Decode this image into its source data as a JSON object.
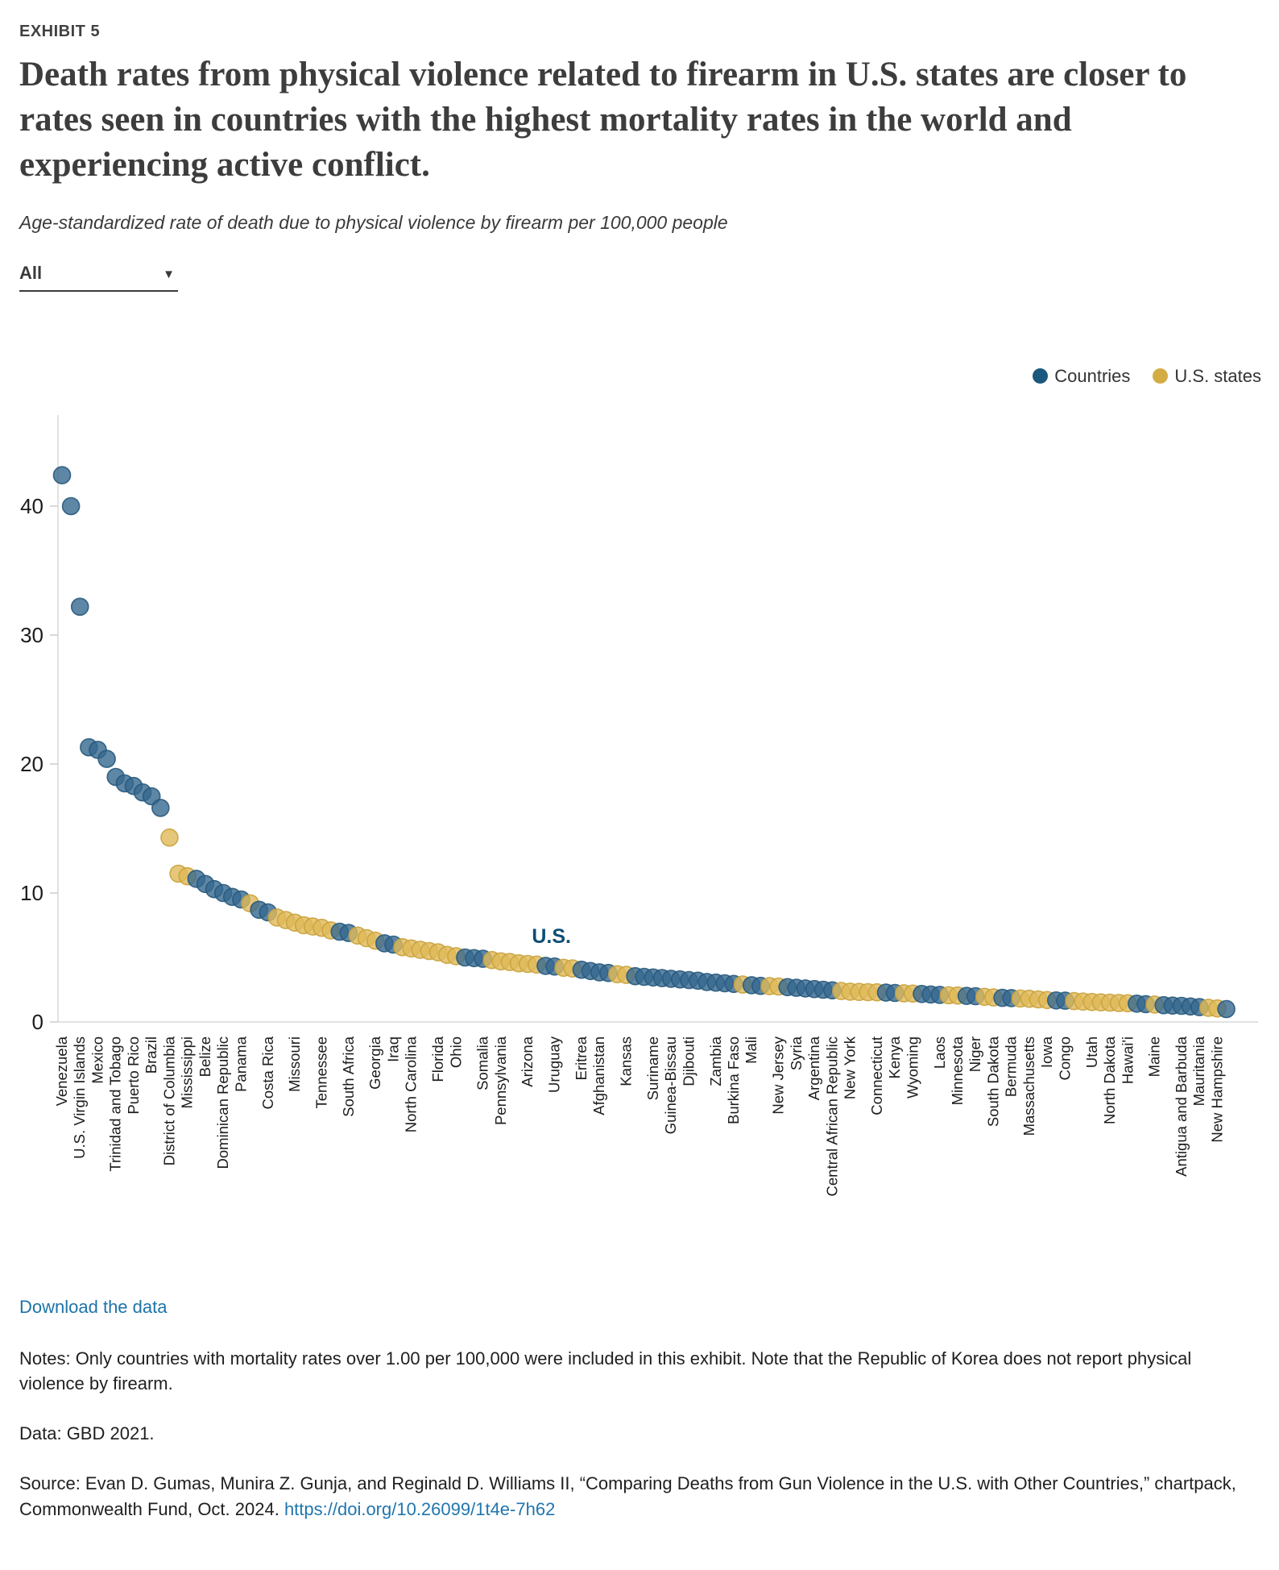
{
  "exhibit": "EXHIBIT 5",
  "title": "Death rates from physical violence related to firearm in U.S. states are closer to rates seen in countries with the highest mortality rates in the world and experiencing active conflict.",
  "subtitle": "Age-standardized rate of death due to physical violence by firearm per 100,000 people",
  "filter": {
    "value": "All",
    "caret": "▼"
  },
  "legend": [
    {
      "label": "Countries",
      "color": "#1b587d"
    },
    {
      "label": "U.S. states",
      "color": "#d3ac44"
    }
  ],
  "footer": {
    "download": "Download the data",
    "notes": "Notes: Only countries with mortality rates over 1.00 per 100,000 were included in this exhibit. Note that the Republic of Korea does not report physical violence by firearm.",
    "data": "Data: GBD 2021.",
    "source_prefix": "Source: Evan D. Gumas, Munira Z. Gunja, and Reginald D. Williams II, “Comparing Deaths from Gun Violence in the U.S. with Other Countries,” chartpack, Commonwealth Fund, Oct. 2024. ",
    "source_link": "https://doi.org/10.26099/1t4e-7h62"
  },
  "chart_data": {
    "type": "scatter",
    "title": "Age-standardized rate of death due to physical violence by firearm per 100,000 people",
    "xlabel": "",
    "ylabel": "",
    "ylim": [
      0,
      46
    ],
    "yticks": [
      0,
      10,
      20,
      30,
      40
    ],
    "grid": false,
    "legend_position": "top-right",
    "annotation": {
      "text": "U.S.",
      "color": "#0f4d74",
      "near_value": 4.9
    },
    "series_colors": {
      "country": {
        "fill": "#36688e",
        "stroke": "#26597c"
      },
      "state": {
        "fill": "#e0b958",
        "stroke": "#c9a23c"
      }
    },
    "point_format": "l = x-axis label ('' = unlabeled tick), v = rate per 100,000, t = c(country)|s(U.S. state)",
    "points": [
      {
        "l": "Venezuela",
        "v": 42.4,
        "t": "c"
      },
      {
        "l": "",
        "v": 40.0,
        "t": "c"
      },
      {
        "l": "U.S. Virgin Islands",
        "v": 32.2,
        "t": "c"
      },
      {
        "l": "",
        "v": 21.3,
        "t": "c"
      },
      {
        "l": "Mexico",
        "v": 21.1,
        "t": "c"
      },
      {
        "l": "",
        "v": 20.4,
        "t": "c"
      },
      {
        "l": "Trinidad and Tobago",
        "v": 19.0,
        "t": "c"
      },
      {
        "l": "",
        "v": 18.5,
        "t": "c"
      },
      {
        "l": "Puerto Rico",
        "v": 18.3,
        "t": "c"
      },
      {
        "l": "",
        "v": 17.8,
        "t": "c"
      },
      {
        "l": "Brazil",
        "v": 17.5,
        "t": "c"
      },
      {
        "l": "",
        "v": 16.6,
        "t": "c"
      },
      {
        "l": "District of Columbia",
        "v": 14.3,
        "t": "s"
      },
      {
        "l": "",
        "v": 11.5,
        "t": "s"
      },
      {
        "l": "Mississippi",
        "v": 11.3,
        "t": "s"
      },
      {
        "l": "",
        "v": 11.1,
        "t": "c"
      },
      {
        "l": "Belize",
        "v": 10.7,
        "t": "c"
      },
      {
        "l": "",
        "v": 10.3,
        "t": "c"
      },
      {
        "l": "Dominican Republic",
        "v": 10.0,
        "t": "c"
      },
      {
        "l": "",
        "v": 9.7,
        "t": "c"
      },
      {
        "l": "Panama",
        "v": 9.5,
        "t": "c"
      },
      {
        "l": "",
        "v": 9.2,
        "t": "s"
      },
      {
        "l": "",
        "v": 8.7,
        "t": "c"
      },
      {
        "l": "Costa Rica",
        "v": 8.5,
        "t": "c"
      },
      {
        "l": "",
        "v": 8.1,
        "t": "s"
      },
      {
        "l": "",
        "v": 7.9,
        "t": "s"
      },
      {
        "l": "Missouri",
        "v": 7.7,
        "t": "s"
      },
      {
        "l": "",
        "v": 7.5,
        "t": "s"
      },
      {
        "l": "",
        "v": 7.4,
        "t": "s"
      },
      {
        "l": "Tennessee",
        "v": 7.3,
        "t": "s"
      },
      {
        "l": "",
        "v": 7.1,
        "t": "s"
      },
      {
        "l": "",
        "v": 7.0,
        "t": "c"
      },
      {
        "l": "South Africa",
        "v": 6.9,
        "t": "c"
      },
      {
        "l": "",
        "v": 6.7,
        "t": "s"
      },
      {
        "l": "",
        "v": 6.5,
        "t": "s"
      },
      {
        "l": "Georgia",
        "v": 6.3,
        "t": "s"
      },
      {
        "l": "",
        "v": 6.1,
        "t": "c"
      },
      {
        "l": "Iraq",
        "v": 6.0,
        "t": "c"
      },
      {
        "l": "",
        "v": 5.8,
        "t": "s"
      },
      {
        "l": "North Carolina",
        "v": 5.7,
        "t": "s"
      },
      {
        "l": "",
        "v": 5.6,
        "t": "s"
      },
      {
        "l": "",
        "v": 5.5,
        "t": "s"
      },
      {
        "l": "Florida",
        "v": 5.4,
        "t": "s"
      },
      {
        "l": "",
        "v": 5.2,
        "t": "s"
      },
      {
        "l": "Ohio",
        "v": 5.1,
        "t": "s"
      },
      {
        "l": "",
        "v": 5.0,
        "t": "c"
      },
      {
        "l": "",
        "v": 4.95,
        "t": "c"
      },
      {
        "l": "Somalia",
        "v": 4.9,
        "t": "c"
      },
      {
        "l": "",
        "v": 4.8,
        "t": "s"
      },
      {
        "l": "Pennsylvania",
        "v": 4.7,
        "t": "s"
      },
      {
        "l": "",
        "v": 4.65,
        "t": "s"
      },
      {
        "l": "",
        "v": 4.55,
        "t": "s"
      },
      {
        "l": "Arizona",
        "v": 4.5,
        "t": "s"
      },
      {
        "l": "",
        "v": 4.45,
        "t": "s"
      },
      {
        "l": "",
        "v": 4.35,
        "t": "c"
      },
      {
        "l": "Uruguay",
        "v": 4.3,
        "t": "c"
      },
      {
        "l": "",
        "v": 4.2,
        "t": "s"
      },
      {
        "l": "",
        "v": 4.15,
        "t": "s"
      },
      {
        "l": "Eritrea",
        "v": 4.05,
        "t": "c"
      },
      {
        "l": "",
        "v": 3.95,
        "t": "c"
      },
      {
        "l": "Afghanistan",
        "v": 3.85,
        "t": "c"
      },
      {
        "l": "",
        "v": 3.8,
        "t": "c"
      },
      {
        "l": "",
        "v": 3.7,
        "t": "s"
      },
      {
        "l": "Kansas",
        "v": 3.65,
        "t": "s"
      },
      {
        "l": "",
        "v": 3.55,
        "t": "c"
      },
      {
        "l": "",
        "v": 3.5,
        "t": "c"
      },
      {
        "l": "Suriname",
        "v": 3.45,
        "t": "c"
      },
      {
        "l": "",
        "v": 3.4,
        "t": "c"
      },
      {
        "l": "Guinea-Bissau",
        "v": 3.35,
        "t": "c"
      },
      {
        "l": "",
        "v": 3.3,
        "t": "c"
      },
      {
        "l": "Djibouti",
        "v": 3.25,
        "t": "c"
      },
      {
        "l": "",
        "v": 3.2,
        "t": "c"
      },
      {
        "l": "",
        "v": 3.1,
        "t": "c"
      },
      {
        "l": "Zambia",
        "v": 3.05,
        "t": "c"
      },
      {
        "l": "",
        "v": 3.0,
        "t": "c"
      },
      {
        "l": "Burkina Faso",
        "v": 2.95,
        "t": "c"
      },
      {
        "l": "",
        "v": 2.9,
        "t": "s"
      },
      {
        "l": "Mali",
        "v": 2.85,
        "t": "c"
      },
      {
        "l": "",
        "v": 2.8,
        "t": "c"
      },
      {
        "l": "",
        "v": 2.78,
        "t": "s"
      },
      {
        "l": "New Jersey",
        "v": 2.75,
        "t": "s"
      },
      {
        "l": "",
        "v": 2.7,
        "t": "c"
      },
      {
        "l": "Syria",
        "v": 2.65,
        "t": "c"
      },
      {
        "l": "",
        "v": 2.6,
        "t": "c"
      },
      {
        "l": "Argentina",
        "v": 2.55,
        "t": "c"
      },
      {
        "l": "",
        "v": 2.5,
        "t": "c"
      },
      {
        "l": "Central African Republic",
        "v": 2.45,
        "t": "c"
      },
      {
        "l": "",
        "v": 2.4,
        "t": "s"
      },
      {
        "l": "New York",
        "v": 2.35,
        "t": "s"
      },
      {
        "l": "",
        "v": 2.33,
        "t": "s"
      },
      {
        "l": "",
        "v": 2.31,
        "t": "s"
      },
      {
        "l": "Connecticut",
        "v": 2.3,
        "t": "s"
      },
      {
        "l": "",
        "v": 2.28,
        "t": "c"
      },
      {
        "l": "Kenya",
        "v": 2.25,
        "t": "c"
      },
      {
        "l": "",
        "v": 2.22,
        "t": "s"
      },
      {
        "l": "Wyoming",
        "v": 2.2,
        "t": "s"
      },
      {
        "l": "",
        "v": 2.17,
        "t": "c"
      },
      {
        "l": "",
        "v": 2.13,
        "t": "c"
      },
      {
        "l": "Laos",
        "v": 2.1,
        "t": "c"
      },
      {
        "l": "",
        "v": 2.07,
        "t": "s"
      },
      {
        "l": "Minnesota",
        "v": 2.05,
        "t": "s"
      },
      {
        "l": "",
        "v": 2.02,
        "t": "c"
      },
      {
        "l": "Niger",
        "v": 2.0,
        "t": "c"
      },
      {
        "l": "",
        "v": 1.95,
        "t": "s"
      },
      {
        "l": "South Dakota",
        "v": 1.9,
        "t": "s"
      },
      {
        "l": "",
        "v": 1.87,
        "t": "c"
      },
      {
        "l": "Bermuda",
        "v": 1.85,
        "t": "c"
      },
      {
        "l": "",
        "v": 1.82,
        "t": "s"
      },
      {
        "l": "Massachusetts",
        "v": 1.8,
        "t": "s"
      },
      {
        "l": "",
        "v": 1.75,
        "t": "s"
      },
      {
        "l": "Iowa",
        "v": 1.7,
        "t": "s"
      },
      {
        "l": "",
        "v": 1.67,
        "t": "c"
      },
      {
        "l": "Congo",
        "v": 1.65,
        "t": "c"
      },
      {
        "l": "",
        "v": 1.62,
        "t": "s"
      },
      {
        "l": "",
        "v": 1.58,
        "t": "s"
      },
      {
        "l": "Utah",
        "v": 1.55,
        "t": "s"
      },
      {
        "l": "",
        "v": 1.52,
        "t": "s"
      },
      {
        "l": "North Dakota",
        "v": 1.5,
        "t": "s"
      },
      {
        "l": "",
        "v": 1.47,
        "t": "s"
      },
      {
        "l": "Hawai'i",
        "v": 1.45,
        "t": "s"
      },
      {
        "l": "",
        "v": 1.42,
        "t": "c"
      },
      {
        "l": "",
        "v": 1.38,
        "t": "c"
      },
      {
        "l": "Maine",
        "v": 1.35,
        "t": "s"
      },
      {
        "l": "",
        "v": 1.3,
        "t": "c"
      },
      {
        "l": "",
        "v": 1.27,
        "t": "c"
      },
      {
        "l": "Antigua and Barbuda",
        "v": 1.25,
        "t": "c"
      },
      {
        "l": "",
        "v": 1.2,
        "t": "c"
      },
      {
        "l": "Mauritania",
        "v": 1.15,
        "t": "c"
      },
      {
        "l": "",
        "v": 1.1,
        "t": "s"
      },
      {
        "l": "New Hampshire",
        "v": 1.05,
        "t": "s"
      },
      {
        "l": "",
        "v": 1.0,
        "t": "c"
      }
    ]
  }
}
